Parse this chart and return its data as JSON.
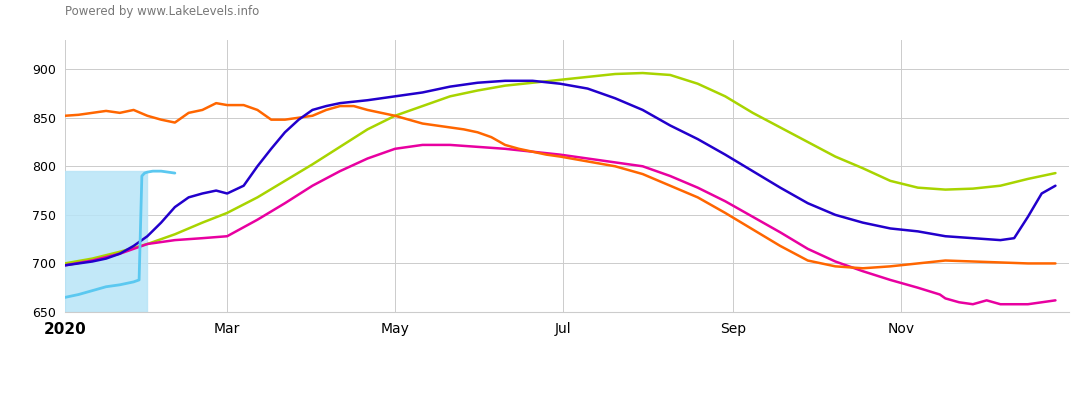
{
  "title": "Powered by www.LakeLevels.info",
  "ylim": [
    650,
    930
  ],
  "yticks": [
    650,
    700,
    750,
    800,
    850,
    900
  ],
  "background_color": "#ffffff",
  "grid_color": "#cccccc",
  "colors": {
    "2020": "#5bc8f0",
    "2019": "#a8d400",
    "2018": "#e800a0",
    "2017": "#ff6600",
    "2016": "#2200cc",
    "2015": "#aaaaaa"
  },
  "month_labels": [
    "2020",
    "Mar",
    "May",
    "Jul",
    "Sep",
    "Nov"
  ],
  "month_positions": [
    0,
    59,
    120,
    181,
    243,
    304
  ],
  "series_2020_x": [
    0,
    5,
    10,
    15,
    20,
    25,
    27,
    28,
    29,
    30,
    32,
    35,
    40
  ],
  "series_2020_y": [
    665,
    668,
    672,
    676,
    678,
    681,
    683,
    790,
    793,
    794,
    795,
    795,
    793
  ],
  "series_2019_x": [
    0,
    10,
    20,
    30,
    40,
    50,
    59,
    70,
    80,
    90,
    100,
    110,
    120,
    130,
    140,
    150,
    160,
    170,
    180,
    190,
    200,
    210,
    220,
    230,
    240,
    250,
    260,
    270,
    280,
    290,
    300,
    310,
    320,
    330,
    340,
    350,
    360
  ],
  "series_2019_y": [
    700,
    705,
    712,
    720,
    730,
    742,
    752,
    768,
    785,
    802,
    820,
    838,
    852,
    862,
    872,
    878,
    883,
    886,
    889,
    892,
    895,
    896,
    894,
    885,
    872,
    855,
    840,
    825,
    810,
    798,
    785,
    778,
    776,
    777,
    780,
    787,
    793
  ],
  "series_2018_x": [
    0,
    10,
    20,
    30,
    40,
    50,
    59,
    70,
    80,
    90,
    100,
    110,
    120,
    130,
    140,
    150,
    160,
    170,
    180,
    190,
    200,
    210,
    220,
    230,
    240,
    250,
    260,
    270,
    280,
    290,
    300,
    310,
    318,
    320,
    325,
    330,
    335,
    340,
    345,
    350,
    355,
    360
  ],
  "series_2018_y": [
    698,
    703,
    710,
    720,
    724,
    726,
    728,
    745,
    762,
    780,
    795,
    808,
    818,
    822,
    822,
    820,
    818,
    815,
    812,
    808,
    804,
    800,
    790,
    778,
    764,
    748,
    732,
    715,
    702,
    692,
    683,
    675,
    668,
    664,
    660,
    658,
    662,
    658,
    658,
    658,
    660,
    662
  ],
  "series_2017_x": [
    0,
    5,
    10,
    15,
    20,
    25,
    30,
    35,
    40,
    45,
    50,
    55,
    59,
    65,
    70,
    75,
    80,
    85,
    90,
    95,
    100,
    105,
    110,
    115,
    120,
    125,
    130,
    135,
    140,
    145,
    150,
    155,
    160,
    165,
    170,
    175,
    180,
    190,
    200,
    210,
    220,
    230,
    240,
    250,
    260,
    270,
    280,
    290,
    300,
    310,
    320,
    330,
    340,
    350,
    355,
    360
  ],
  "series_2017_y": [
    852,
    853,
    855,
    857,
    855,
    858,
    852,
    848,
    845,
    855,
    858,
    865,
    863,
    863,
    858,
    848,
    848,
    850,
    852,
    858,
    862,
    862,
    858,
    855,
    852,
    848,
    844,
    842,
    840,
    838,
    835,
    830,
    822,
    818,
    815,
    812,
    810,
    805,
    800,
    792,
    780,
    768,
    752,
    735,
    718,
    703,
    697,
    695,
    697,
    700,
    703,
    702,
    701,
    700,
    700,
    700
  ],
  "series_2016_x": [
    0,
    5,
    10,
    15,
    20,
    25,
    30,
    35,
    40,
    45,
    50,
    55,
    59,
    65,
    70,
    75,
    80,
    85,
    90,
    95,
    100,
    110,
    120,
    130,
    140,
    150,
    160,
    170,
    180,
    190,
    200,
    210,
    220,
    230,
    240,
    250,
    260,
    270,
    280,
    290,
    300,
    310,
    320,
    330,
    340,
    345,
    350,
    355,
    360
  ],
  "series_2016_y": [
    698,
    700,
    702,
    705,
    710,
    718,
    728,
    742,
    758,
    768,
    772,
    775,
    772,
    780,
    800,
    818,
    835,
    848,
    858,
    862,
    865,
    868,
    872,
    876,
    882,
    886,
    888,
    888,
    885,
    880,
    870,
    858,
    842,
    828,
    812,
    795,
    778,
    762,
    750,
    742,
    736,
    733,
    728,
    726,
    724,
    726,
    748,
    772,
    780
  ]
}
